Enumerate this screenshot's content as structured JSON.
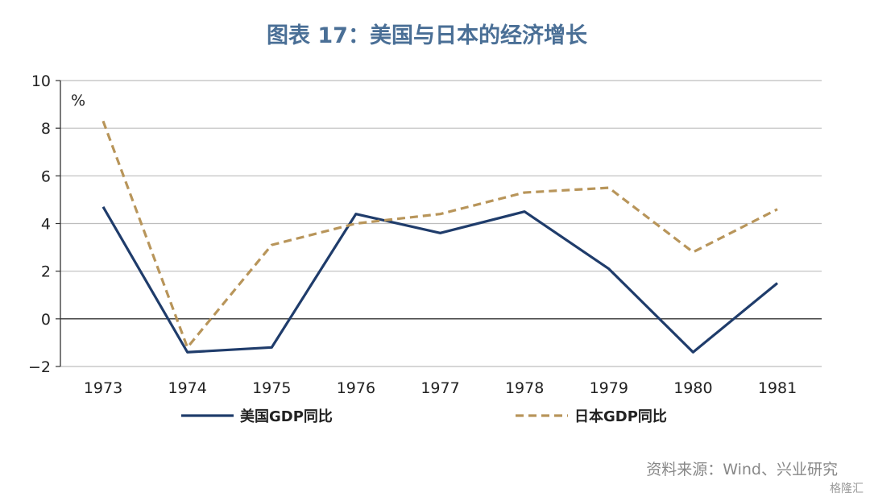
{
  "title": "图表 17：美国与日本的经济增长",
  "source": "资料来源：Wind、兴业研究",
  "watermark": "格隆汇",
  "chart_data": {
    "type": "line",
    "title": "图表 17：美国与日本的经济增长",
    "ylabel": "%",
    "xlabel": "",
    "categories": [
      "1973",
      "1974",
      "1975",
      "1976",
      "1977",
      "1978",
      "1979",
      "1980",
      "1981"
    ],
    "ylim": [
      -2,
      10
    ],
    "yticks": [
      -2,
      0,
      2,
      4,
      6,
      8,
      10
    ],
    "grid": true,
    "legend": "bottom",
    "series": [
      {
        "name": "美国GDP同比",
        "color": "#1f3c6b",
        "style": "solid",
        "values": [
          4.7,
          -1.4,
          -1.2,
          4.4,
          3.6,
          4.5,
          2.1,
          -1.4,
          1.5
        ]
      },
      {
        "name": "日本GDP同比",
        "color": "#b8955a",
        "style": "dashed",
        "values": [
          8.3,
          -1.2,
          3.1,
          4.0,
          4.4,
          5.3,
          5.5,
          2.8,
          4.6
        ]
      }
    ]
  }
}
